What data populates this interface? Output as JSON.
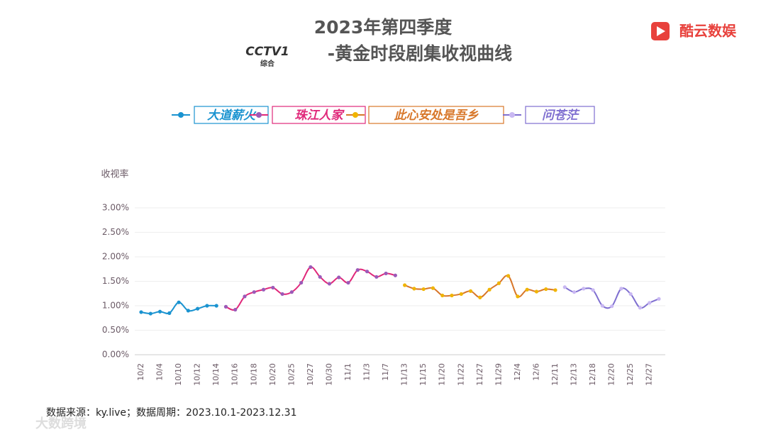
{
  "chart_data": {
    "type": "line",
    "title": "2023年第四季度",
    "subtitle": "-黄金时段剧集收视曲线",
    "brand": "酷云数娱",
    "channel_logo": "CCTV1",
    "channel_name": "综合",
    "y_label": "收视率",
    "source": "数据来源：ky.live；数据周期：2023.10.1-2023.12.31",
    "watermark": "大数跨境",
    "categories": [
      "10/2",
      null,
      "10/4",
      null,
      "10/10",
      null,
      "10/12",
      null,
      "10/14",
      null,
      "10/16",
      null,
      "10/18",
      null,
      "10/20",
      null,
      "10/25",
      null,
      "10/27",
      null,
      "10/30",
      null,
      "11/1",
      null,
      "11/3",
      null,
      "11/7",
      null,
      "11/13",
      null,
      "11/15",
      null,
      "11/20",
      null,
      "11/22",
      null,
      "11/27",
      null,
      "11/29",
      null,
      "12/4",
      null,
      "12/6",
      null,
      "12/11",
      null,
      "12/13",
      null,
      "12/18",
      null,
      "12/20",
      null,
      "12/25",
      null,
      "12/27",
      null
    ],
    "series": [
      {
        "name": "大道薪火",
        "color": "#1a93d0",
        "marker_color": "#1a93d0",
        "values": [
          0.87,
          0.84,
          0.88,
          0.85,
          1.07,
          0.9,
          0.94,
          1.0,
          1.0,
          null,
          null,
          null,
          null,
          null,
          null,
          null,
          null,
          null,
          null,
          null,
          null,
          null,
          null,
          null,
          null,
          null,
          null,
          null,
          null,
          null,
          null,
          null,
          null,
          null,
          null,
          null,
          null,
          null,
          null,
          null,
          null,
          null,
          null,
          null,
          null,
          null,
          null,
          null,
          null,
          null,
          null,
          null,
          null,
          null,
          null,
          null
        ]
      },
      {
        "name": "珠江人家",
        "color": "#e0287a",
        "marker_color": "#9b5ab8",
        "values": [
          null,
          null,
          null,
          null,
          null,
          null,
          null,
          null,
          null,
          0.98,
          0.92,
          1.19,
          1.28,
          1.33,
          1.37,
          1.24,
          1.28,
          1.47,
          1.79,
          1.59,
          1.45,
          1.58,
          1.47,
          1.73,
          1.7,
          1.59,
          1.66,
          1.62,
          null,
          null,
          null,
          null,
          null,
          null,
          null,
          null,
          null,
          null,
          null,
          null,
          null,
          null,
          null,
          null,
          null,
          null,
          null,
          null,
          null,
          null,
          null,
          null,
          null,
          null,
          null,
          null
        ]
      },
      {
        "name": "此心安处是吾乡",
        "color": "#d8772a",
        "marker_color": "#f0b400",
        "values": [
          null,
          null,
          null,
          null,
          null,
          null,
          null,
          null,
          null,
          null,
          null,
          null,
          null,
          null,
          null,
          null,
          null,
          null,
          null,
          null,
          null,
          null,
          null,
          null,
          null,
          null,
          null,
          null,
          1.42,
          1.35,
          1.34,
          1.36,
          1.21,
          1.21,
          1.24,
          1.3,
          1.17,
          1.33,
          1.46,
          1.61,
          1.19,
          1.33,
          1.29,
          1.34,
          1.32,
          null,
          null,
          null,
          null,
          null,
          null,
          null,
          null,
          null,
          null,
          null
        ]
      },
      {
        "name": "问苍茫",
        "color": "#7f6fd0",
        "marker_color": "#c9b8f2",
        "values": [
          null,
          null,
          null,
          null,
          null,
          null,
          null,
          null,
          null,
          null,
          null,
          null,
          null,
          null,
          null,
          null,
          null,
          null,
          null,
          null,
          null,
          null,
          null,
          null,
          null,
          null,
          null,
          null,
          null,
          null,
          null,
          null,
          null,
          null,
          null,
          null,
          null,
          null,
          null,
          null,
          null,
          null,
          null,
          null,
          null,
          1.38,
          1.28,
          1.35,
          1.32,
          1.0,
          0.99,
          1.35,
          1.24,
          0.96,
          1.06,
          1.14
        ]
      }
    ],
    "ylim": [
      0,
      3
    ],
    "yticks": [
      {
        "value": 0,
        "label": "0.00%"
      },
      {
        "value": 0.5,
        "label": "0.50%"
      },
      {
        "value": 1,
        "label": "1.00%"
      },
      {
        "value": 1.5,
        "label": "1.50%"
      },
      {
        "value": 2,
        "label": "2.00%"
      },
      {
        "value": 2.5,
        "label": "2.50%"
      },
      {
        "value": 3,
        "label": "3.00%"
      }
    ],
    "grid": true
  }
}
